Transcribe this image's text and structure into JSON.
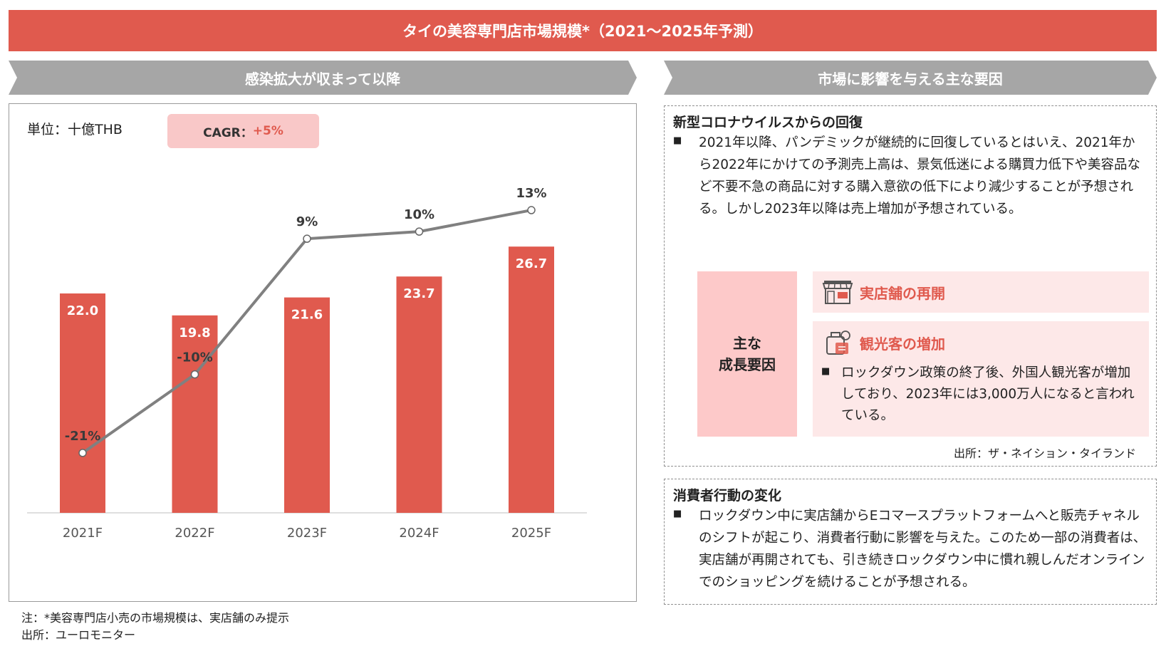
{
  "title": "タイの美容専門店市場規模*（2021～2025年予測）",
  "left_header": "感染拡大が収まって以降",
  "right_header": "市場に影響を与える主な要因",
  "unit_label": "単位：十億THB",
  "cagr": {
    "label": "CAGR：",
    "value": "+5%"
  },
  "chart_data": {
    "type": "bar",
    "categories": [
      "2021F",
      "2022F",
      "2023F",
      "2024F",
      "2025F"
    ],
    "values": [
      22.0,
      19.8,
      21.6,
      23.7,
      26.7
    ],
    "value_labels": [
      "22.0",
      "19.8",
      "21.6",
      "23.7",
      "26.7"
    ],
    "growth_line": {
      "values": [
        -21,
        -10,
        9,
        10,
        13
      ],
      "labels": [
        "-21%",
        "-10%",
        "9%",
        "10%",
        "13%"
      ]
    },
    "ylim": [
      0,
      30
    ],
    "growth_ylim": [
      -25,
      15
    ],
    "bar_color": "#e05a4e",
    "line_color": "#808080",
    "grid": false
  },
  "covid": {
    "heading": "新型コロナウイルスからの回復",
    "bullet": "2021年以降、パンデミックが継続的に回復しているとはいえ、2021年から2022年にかけての予測売上高は、景気低迷による購買力低下や美容品など不要不急の商品に対する購入意欲の低下により減少することが予想される。しかし2023年以降は売上増加が予想されている。"
  },
  "growth_factors": {
    "label_line1": "主な",
    "label_line2": "成長要因",
    "reopen": {
      "title": "実店舗の再開",
      "icon": "store-icon"
    },
    "tourism": {
      "title": "観光客の増加",
      "icon": "tourist-icon",
      "bullet": "ロックダウン政策の終了後、外国人観光客が増加しており、2023年には3,000万人になると言われている。"
    },
    "source": "出所：ザ・ネイション・タイランド"
  },
  "behavior": {
    "heading": "消費者行動の変化",
    "bullet": "ロックダウン中に実店舗からEコマースプラットフォームへと販売チャネルのシフトが起こり、消費者行動に影響を与えた。このため一部の消費者は、実店舗が再開されても、引き続きロックダウン中に慣れ親しんだオンラインでのショッピングを続けることが予想される。"
  },
  "footnotes": {
    "note": "注：*美容専門店小売の市場規模は、実店舗のみ提示",
    "source": "出所：ユーロモニター"
  },
  "colors": {
    "accent": "#e05a4e",
    "gray_header": "#a6a6a6",
    "pink": "#fdc9c9",
    "light_pink": "#fde8e8"
  }
}
